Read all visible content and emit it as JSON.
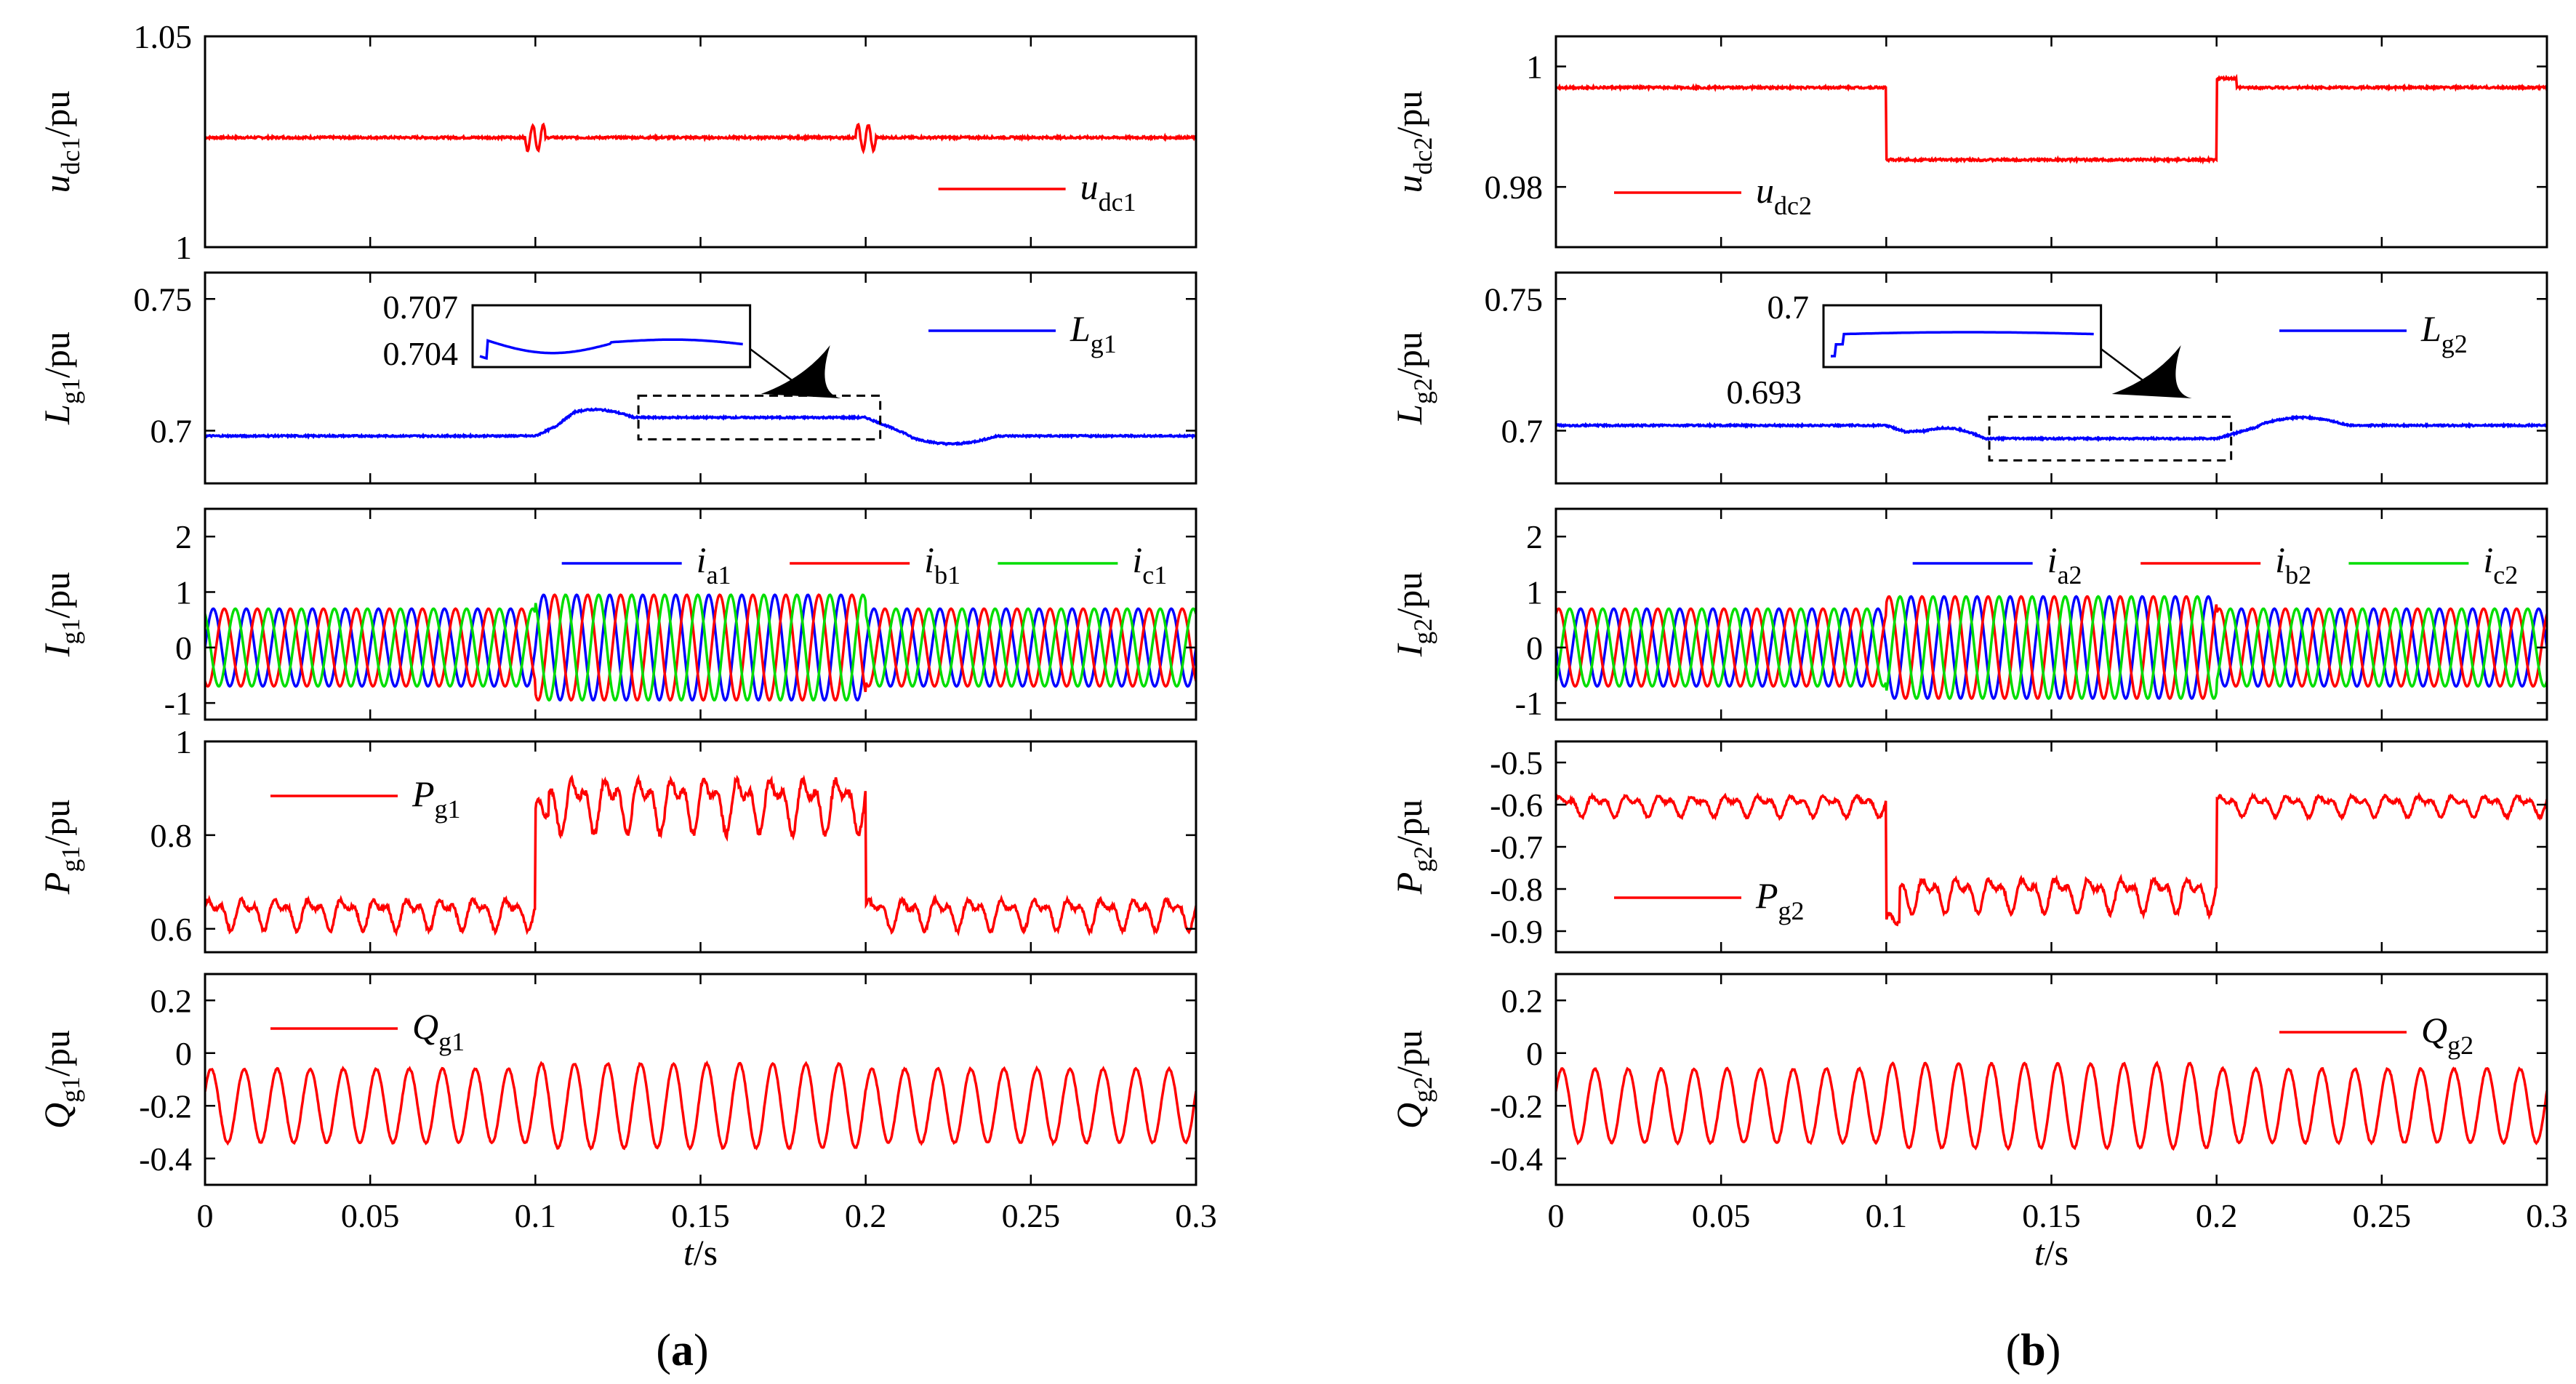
{
  "time_axis": {
    "label_main": "t",
    "label_unit": "/s",
    "ticks": [
      "0",
      "0.05",
      "0.1",
      "0.15",
      "0.2",
      "0.25",
      "0.3"
    ],
    "range": [
      0,
      0.3
    ]
  },
  "panels": [
    {
      "id": "a",
      "label_open": "(",
      "label_letter": "a",
      "label_close": ")"
    },
    {
      "id": "b",
      "label_open": "(",
      "label_letter": "b",
      "label_close": ")"
    }
  ],
  "colors": {
    "red": "#ff0000",
    "blue": "#0000ff",
    "green": "#00dd00",
    "black": "#000000"
  },
  "chart_data": [
    {
      "type": "line",
      "panel": "a",
      "row": 0,
      "ylabel": {
        "main": "u",
        "sub": "dc1",
        "unit": "/pu"
      },
      "ylim": [
        1,
        1.05
      ],
      "yticks": [
        "1",
        "1.05"
      ],
      "series": [
        {
          "name": "u_dc1",
          "legend_main": "u",
          "legend_sub": "dc1",
          "color": "#ff0000",
          "base": 1.026,
          "step_at": null,
          "step_value": 0
        }
      ],
      "legend_position": "bottom-right"
    },
    {
      "type": "line",
      "panel": "a",
      "row": 1,
      "ylabel": {
        "main": "L",
        "sub": "g1",
        "unit": "/pu"
      },
      "ylim": [
        0.68,
        0.76
      ],
      "yticks": [
        "0.7",
        "0.75"
      ],
      "series": [
        {
          "name": "L_g1",
          "legend_main": "L",
          "legend_sub": "g1",
          "color": "#0000ff",
          "before": 0.698,
          "during": 0.705,
          "after": 0.698
        }
      ],
      "inset": {
        "labels": [
          "0.707",
          "0.704"
        ],
        "window": [
          0.14,
          0.2
        ]
      },
      "legend_position": "top-right"
    },
    {
      "type": "line",
      "panel": "a",
      "row": 2,
      "ylabel": {
        "main": "I",
        "sub": "g1",
        "unit": "/pu"
      },
      "ylim": [
        -1.3,
        2.5
      ],
      "yticks": [
        "-1",
        "0",
        "1",
        "2"
      ],
      "series": [
        {
          "name": "i_a1",
          "legend_main": "i",
          "legend_sub": "a1",
          "color": "#0000ff",
          "amp_before": 0.7,
          "amp_during": 0.95,
          "phase_deg": 0
        },
        {
          "name": "i_b1",
          "legend_main": "i",
          "legend_sub": "b1",
          "color": "#ff0000",
          "amp_before": 0.7,
          "amp_during": 0.95,
          "phase_deg": -120
        },
        {
          "name": "i_c1",
          "legend_main": "i",
          "legend_sub": "c1",
          "color": "#00dd00",
          "amp_before": 0.7,
          "amp_during": 0.95,
          "phase_deg": 120
        }
      ],
      "frequency_hz": 100,
      "legend_position": "top-right"
    },
    {
      "type": "line",
      "panel": "a",
      "row": 3,
      "ylabel": {
        "main": "P",
        "sub": "g1",
        "unit": "/pu"
      },
      "ylim": [
        0.55,
        1.0
      ],
      "yticks": [
        "0.6",
        "0.8",
        "1"
      ],
      "series": [
        {
          "name": "P_g1",
          "legend_main": "P",
          "legend_sub": "g1",
          "color": "#ff0000",
          "mean_before": 0.635,
          "ripple_before": 0.04,
          "mean_during": 0.87,
          "ripple_during": 0.07
        }
      ],
      "legend_position": "top-left"
    },
    {
      "type": "line",
      "panel": "a",
      "row": 4,
      "ylabel": {
        "main": "Q",
        "sub": "g1",
        "unit": "/pu"
      },
      "ylim": [
        -0.5,
        0.3
      ],
      "yticks": [
        "-0.4",
        "-0.2",
        "0",
        "0.2"
      ],
      "series": [
        {
          "name": "Q_g1",
          "legend_main": "Q",
          "legend_sub": "g1",
          "color": "#ff0000",
          "mean": -0.2,
          "ripple_before": 0.14,
          "ripple_during": 0.16
        }
      ],
      "legend_position": "top-left"
    },
    {
      "type": "line",
      "panel": "b",
      "row": 0,
      "ylabel": {
        "main": "u",
        "sub": "dc2",
        "unit": "/pu"
      },
      "ylim": [
        0.97,
        1.005
      ],
      "yticks": [
        "0.98",
        "1"
      ],
      "series": [
        {
          "name": "u_dc2",
          "legend_main": "u",
          "legend_sub": "dc2",
          "color": "#ff0000",
          "base": 0.9965,
          "step_at": 0.1,
          "step_value": 0.9845
        }
      ],
      "legend_position": "bottom-left"
    },
    {
      "type": "line",
      "panel": "b",
      "row": 1,
      "ylabel": {
        "main": "L",
        "sub": "g2",
        "unit": "/pu"
      },
      "ylim": [
        0.68,
        0.76
      ],
      "yticks": [
        "0.7",
        "0.75"
      ],
      "series": [
        {
          "name": "L_g2",
          "legend_main": "L",
          "legend_sub": "g2",
          "color": "#0000ff",
          "before": 0.702,
          "during": 0.697,
          "after": 0.702
        }
      ],
      "inset": {
        "labels": [
          "0.7",
          "0.693"
        ],
        "window": [
          0.14,
          0.2
        ]
      },
      "legend_position": "top-right"
    },
    {
      "type": "line",
      "panel": "b",
      "row": 2,
      "ylabel": {
        "main": "I",
        "sub": "g2",
        "unit": "/pu"
      },
      "ylim": [
        -1.3,
        2.5
      ],
      "yticks": [
        "-1",
        "0",
        "1",
        "2"
      ],
      "series": [
        {
          "name": "i_a2",
          "legend_main": "i",
          "legend_sub": "a2",
          "color": "#0000ff",
          "amp_before": 0.7,
          "amp_during": 0.92,
          "phase_deg": 180
        },
        {
          "name": "i_b2",
          "legend_main": "i",
          "legend_sub": "b2",
          "color": "#ff0000",
          "amp_before": 0.7,
          "amp_during": 0.92,
          "phase_deg": 60
        },
        {
          "name": "i_c2",
          "legend_main": "i",
          "legend_sub": "c2",
          "color": "#00dd00",
          "amp_before": 0.7,
          "amp_during": 0.92,
          "phase_deg": -60
        }
      ],
      "frequency_hz": 100,
      "legend_position": "top-right"
    },
    {
      "type": "line",
      "panel": "b",
      "row": 3,
      "ylabel": {
        "main": "P",
        "sub": "g2",
        "unit": "/pu"
      },
      "ylim": [
        -0.95,
        -0.45
      ],
      "yticks": [
        "-0.9",
        "-0.8",
        "-0.7",
        "-0.6",
        "-0.5"
      ],
      "series": [
        {
          "name": "P_g2",
          "legend_main": "P",
          "legend_sub": "g2",
          "color": "#ff0000",
          "mean_before": -0.6,
          "ripple_before": 0.03,
          "mean_during": -0.81,
          "ripple_during": 0.05
        }
      ],
      "legend_position": "bottom-left"
    },
    {
      "type": "line",
      "panel": "b",
      "row": 4,
      "ylabel": {
        "main": "Q",
        "sub": "g2",
        "unit": "/pu"
      },
      "ylim": [
        -0.5,
        0.3
      ],
      "yticks": [
        "-0.4",
        "-0.2",
        "0",
        "0.2"
      ],
      "series": [
        {
          "name": "Q_g2",
          "legend_main": "Q",
          "legend_sub": "g2",
          "color": "#ff0000",
          "mean": -0.2,
          "ripple_before": 0.14,
          "ripple_during": 0.16
        }
      ],
      "legend_position": "top-right"
    }
  ]
}
